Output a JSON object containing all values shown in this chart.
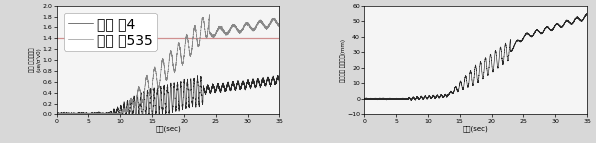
{
  "left_xlabel": "시간(sec)",
  "left_xlim": [
    0,
    35
  ],
  "left_ylim": [
    0.0,
    2.0
  ],
  "left_yticks": [
    0.0,
    0.2,
    0.4,
    0.6,
    0.8,
    1.0,
    1.2,
    1.4,
    1.6,
    1.8,
    2.0
  ],
  "left_xticks": [
    0,
    5,
    10,
    15,
    20,
    25,
    30,
    35
  ],
  "left_hline": 1.4,
  "left_hline_color": "#d09090",
  "legend_labels": [
    "최적 줄4",
    "최적 줄535"
  ],
  "line_color_dark": "#2a2a2a",
  "line_color_gray": "#888888",
  "right_xlabel": "시간(sec)",
  "right_xlim": [
    0,
    35
  ],
  "right_ylim": [
    -10.0,
    60.0
  ],
  "right_yticks": [
    -10.0,
    0.0,
    10.0,
    20.0,
    30.0,
    40.0,
    50.0,
    60.0
  ],
  "right_xticks": [
    0,
    5,
    10,
    15,
    20,
    25,
    30,
    35
  ],
  "bg_color": "#d8d8d8",
  "plot_bg_color": "#f5f5f5",
  "line_color": "#2a2a2a"
}
